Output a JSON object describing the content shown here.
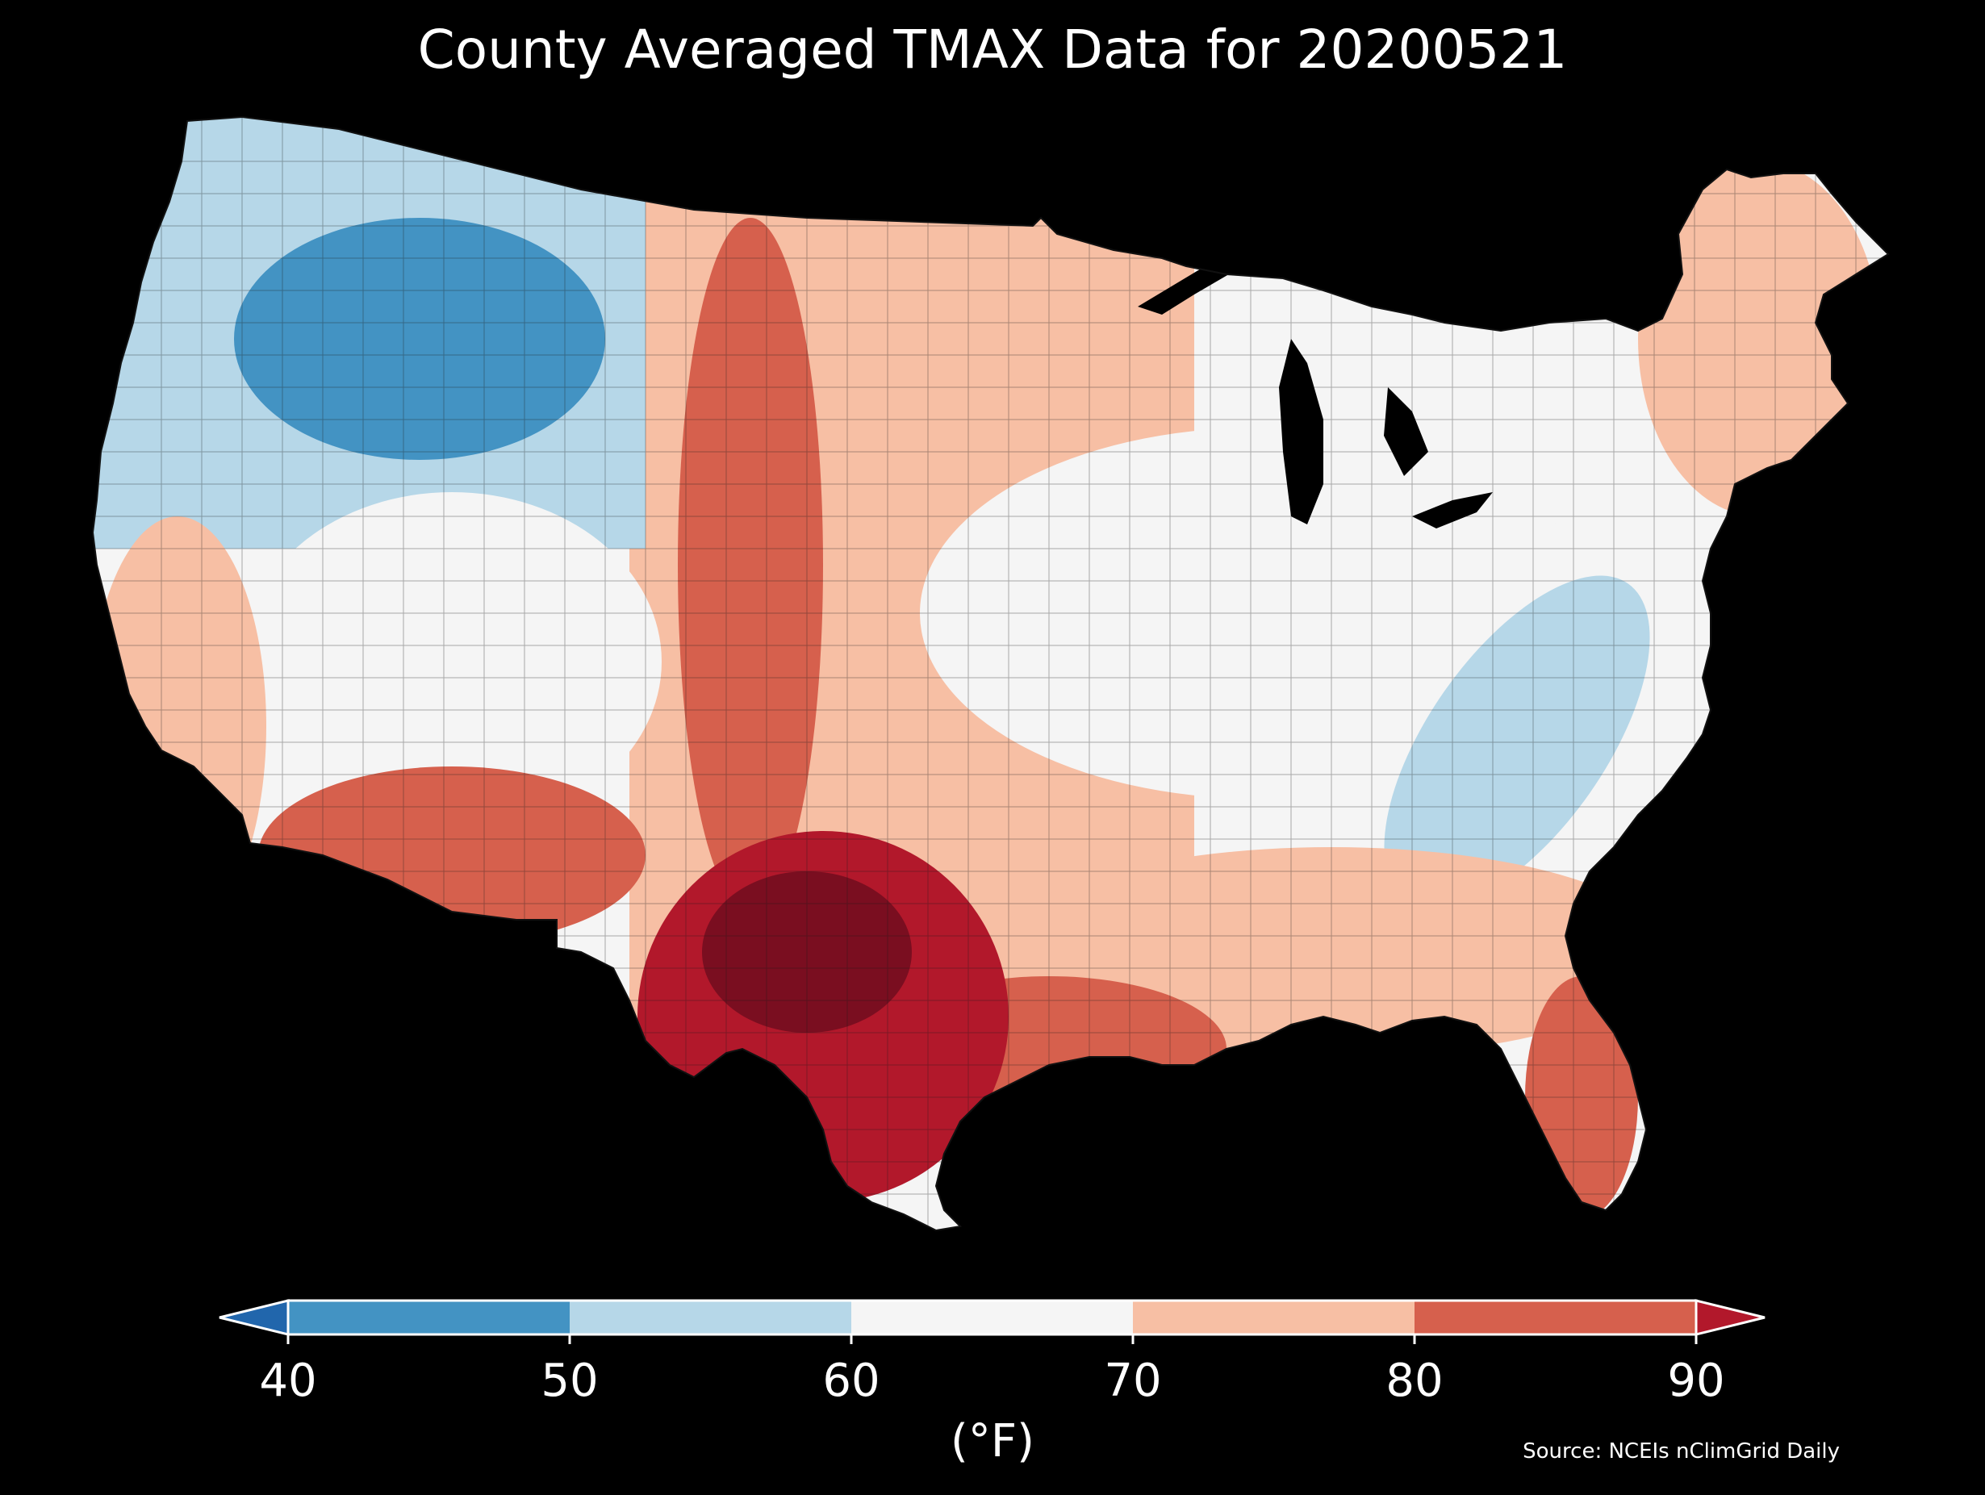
{
  "title": "County Averaged TMAX Data for 20200521",
  "colorbar": {
    "ticks": [
      "40",
      "50",
      "60",
      "70",
      "80",
      "90"
    ],
    "units": "(°F)",
    "bins": [
      {
        "from": 40,
        "to": 50,
        "color": "#4393c3"
      },
      {
        "from": 50,
        "to": 60,
        "color": "#b6d7e8"
      },
      {
        "from": 60,
        "to": 70,
        "color": "#f5f5f5"
      },
      {
        "from": 70,
        "to": 80,
        "color": "#f7bfa4"
      },
      {
        "from": 80,
        "to": 90,
        "color": "#d6604d"
      }
    ],
    "under_color": "#2166ac",
    "over_color": "#b2182b",
    "extend": "both"
  },
  "source": "Source: NCEIs nClimGrid Daily",
  "map": {
    "region": "Contiguous United States",
    "variable": "TMAX",
    "unit": "°F",
    "pattern": [
      {
        "area": "Pacific Northwest & northern Rockies",
        "level": "50-60"
      },
      {
        "area": "Idaho / western Montana / Wyoming mountains",
        "level": "40-50"
      },
      {
        "area": "Great Basin & Colorado Plateau",
        "level": "60-70"
      },
      {
        "area": "Coastal California",
        "level": "70-80"
      },
      {
        "area": "Desert Southwest",
        "level": "80-90"
      },
      {
        "area": "High Plains",
        "level": "80-90"
      },
      {
        "area": "Northern Plains & Upper Midwest",
        "level": "70-80"
      },
      {
        "area": "Ohio Valley & Midwest",
        "level": "60-70"
      },
      {
        "area": "Appalachians",
        "level": "50-60"
      },
      {
        "area": "Northeast",
        "level": "70-80"
      },
      {
        "area": "Southeast",
        "level": "70-80"
      },
      {
        "area": "Texas",
        "level": ">90"
      },
      {
        "area": "Gulf Coast",
        "level": "80-90"
      },
      {
        "area": "Florida",
        "level": "80-90"
      }
    ],
    "colors": {
      "ocean": "#000000",
      "county_border": "#1a1a1a",
      "lakes": "#000000"
    }
  }
}
